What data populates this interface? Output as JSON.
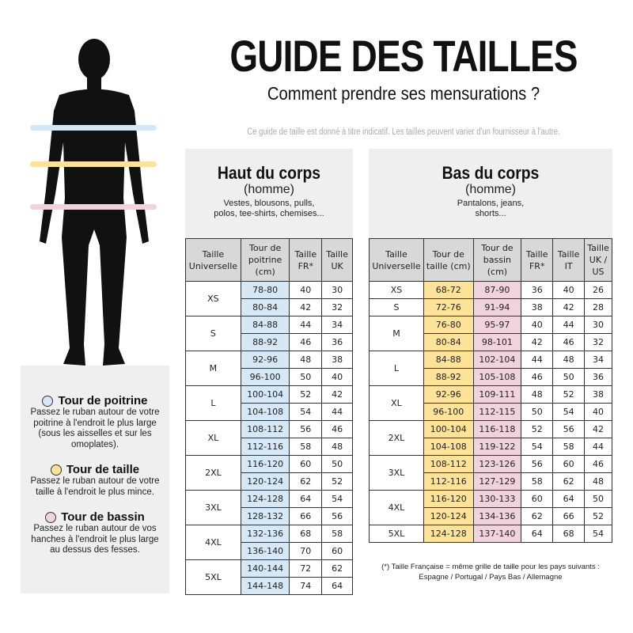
{
  "title": "GUIDE DES TAILLES",
  "subtitle": "Comment prendre ses mensurations ?",
  "disclaimer": "Ce guide de taille est donné à titre indicatif. Les tailles peuvent varier d'un fournisseur à l'autre.",
  "colors": {
    "poitrine": "#d6e8f5",
    "taille": "#fde29a",
    "bassin": "#f0d3dc"
  },
  "top": {
    "title": "Haut du corps",
    "gender": "(homme)",
    "desc": "Vestes, blousons, pulls, polos, tee-shirts, chemises...",
    "headers": [
      "Taille Universelle",
      "Tour de poitrine (cm)",
      "Taille FR*",
      "Taille UK"
    ],
    "groups": [
      {
        "size": "XS",
        "rows": [
          [
            "78-80",
            "40",
            "30"
          ],
          [
            "80-84",
            "42",
            "32"
          ]
        ]
      },
      {
        "size": "S",
        "rows": [
          [
            "84-88",
            "44",
            "34"
          ],
          [
            "88-92",
            "46",
            "36"
          ]
        ]
      },
      {
        "size": "M",
        "rows": [
          [
            "92-96",
            "48",
            "38"
          ],
          [
            "96-100",
            "50",
            "40"
          ]
        ]
      },
      {
        "size": "L",
        "rows": [
          [
            "100-104",
            "52",
            "42"
          ],
          [
            "104-108",
            "54",
            "44"
          ]
        ]
      },
      {
        "size": "XL",
        "rows": [
          [
            "108-112",
            "56",
            "46"
          ],
          [
            "112-116",
            "58",
            "48"
          ]
        ]
      },
      {
        "size": "2XL",
        "rows": [
          [
            "116-120",
            "60",
            "50"
          ],
          [
            "120-124",
            "62",
            "52"
          ]
        ]
      },
      {
        "size": "3XL",
        "rows": [
          [
            "124-128",
            "64",
            "54"
          ],
          [
            "128-132",
            "66",
            "56"
          ]
        ]
      },
      {
        "size": "4XL",
        "rows": [
          [
            "132-136",
            "68",
            "58"
          ],
          [
            "136-140",
            "70",
            "60"
          ]
        ]
      },
      {
        "size": "5XL",
        "rows": [
          [
            "140-144",
            "72",
            "62"
          ],
          [
            "144-148",
            "74",
            "64"
          ]
        ]
      }
    ]
  },
  "bottom": {
    "title": "Bas du corps",
    "gender": "(homme)",
    "desc": "Pantalons, jeans, shorts...",
    "headers": [
      "Taille Universelle",
      "Tour de taille (cm)",
      "Tour de bassin (cm)",
      "Taille FR*",
      "Taille IT",
      "Taille UK / US"
    ],
    "groups": [
      {
        "size": "XS",
        "rows": [
          [
            "68-72",
            "87-90",
            "36",
            "40",
            "26"
          ]
        ]
      },
      {
        "size": "S",
        "rows": [
          [
            "72-76",
            "91-94",
            "38",
            "42",
            "28"
          ]
        ]
      },
      {
        "size": "M",
        "rows": [
          [
            "76-80",
            "95-97",
            "40",
            "44",
            "30"
          ],
          [
            "80-84",
            "98-101",
            "42",
            "46",
            "32"
          ]
        ]
      },
      {
        "size": "L",
        "rows": [
          [
            "84-88",
            "102-104",
            "44",
            "48",
            "34"
          ],
          [
            "88-92",
            "105-108",
            "46",
            "50",
            "36"
          ]
        ]
      },
      {
        "size": "XL",
        "rows": [
          [
            "92-96",
            "109-111",
            "48",
            "52",
            "38"
          ],
          [
            "96-100",
            "112-115",
            "50",
            "54",
            "40"
          ]
        ]
      },
      {
        "size": "2XL",
        "rows": [
          [
            "100-104",
            "116-118",
            "52",
            "56",
            "42"
          ],
          [
            "104-108",
            "119-122",
            "54",
            "58",
            "44"
          ]
        ]
      },
      {
        "size": "3XL",
        "rows": [
          [
            "108-112",
            "123-126",
            "56",
            "60",
            "46"
          ],
          [
            "112-116",
            "127-129",
            "58",
            "62",
            "48"
          ]
        ]
      },
      {
        "size": "4XL",
        "rows": [
          [
            "116-120",
            "130-133",
            "60",
            "64",
            "50"
          ],
          [
            "120-124",
            "134-136",
            "62",
            "66",
            "52"
          ]
        ]
      },
      {
        "size": "5XL",
        "rows": [
          [
            "124-128",
            "137-140",
            "64",
            "68",
            "54"
          ]
        ]
      }
    ]
  },
  "legend": [
    {
      "title": "Tour de poitrine",
      "text": "Passez le ruban autour de votre poitrine à l'endroit le plus large (sous les aisselles et sur les omoplates)."
    },
    {
      "title": "Tour de taille",
      "text": "Passez le ruban autour de votre taille à l'endroit le plus mince."
    },
    {
      "title": "Tour de bassin",
      "text": "Passez le ruban autour de vos hanches à l'endroit le plus large au dessus des fesses."
    }
  ],
  "footnote": "(*) Taille Française = même grille de taille pour les pays suivants : Espagne / Portugal / Pays Bas / Allemagne"
}
